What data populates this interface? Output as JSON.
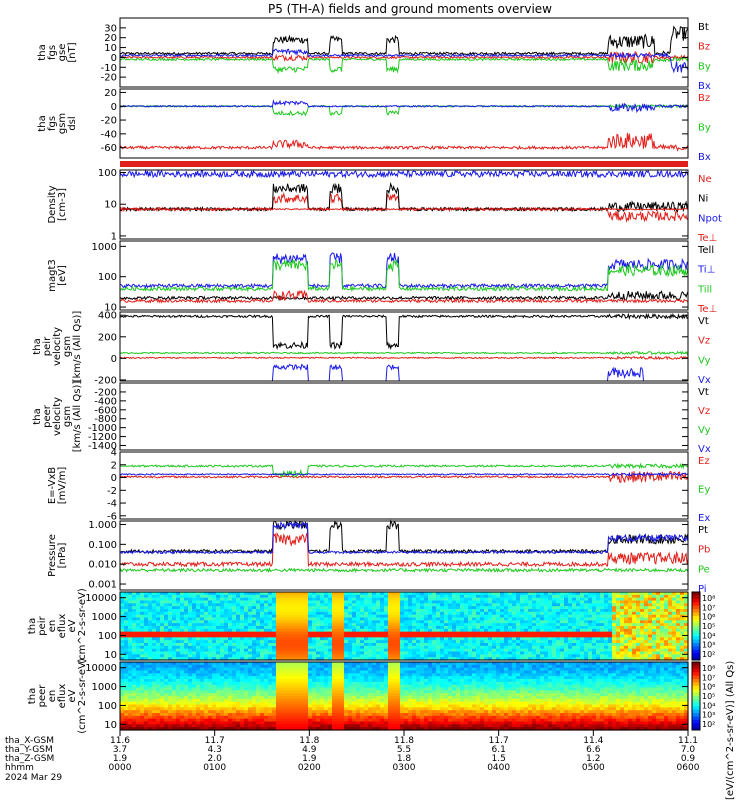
{
  "title": "P5 (TH-A) fields and ground moments overview",
  "colors": {
    "black": "#000000",
    "red": "#e0201b",
    "green": "#1ec81e",
    "blue": "#1a1ae6"
  },
  "chart_data": [
    {
      "type": "line",
      "ylabel": [
        "tha",
        "fgs",
        "gse",
        "[nT]"
      ],
      "ylim": [
        -30,
        40
      ],
      "yticks": [
        {
          "v": 30,
          "label": "30"
        },
        {
          "v": 20,
          "label": "20"
        },
        {
          "v": 10,
          "label": "10"
        },
        {
          "v": 0,
          "label": "0"
        },
        {
          "v": -10,
          "label": "-10"
        },
        {
          "v": -20,
          "label": "-20"
        }
      ],
      "series": [
        {
          "name": "Bt",
          "color": "black",
          "base": 4,
          "noise": 1.2,
          "burst": [
            {
              "t0": 0.27,
              "t1": 0.33,
              "add": 14
            },
            {
              "t0": 0.37,
              "t1": 0.39,
              "add": 14
            },
            {
              "t0": 0.47,
              "t1": 0.49,
              "add": 14
            },
            {
              "t0": 0.86,
              "t1": 0.94,
              "add": 12
            },
            {
              "t0": 0.97,
              "t1": 1.0,
              "add": 20
            }
          ]
        },
        {
          "name": "Bz",
          "color": "red",
          "base": 0,
          "noise": 1,
          "burst": [
            {
              "t0": 0.27,
              "t1": 0.33,
              "add": 0
            },
            {
              "t0": 0.86,
              "t1": 0.94,
              "add": 0
            }
          ]
        },
        {
          "name": "By",
          "color": "green",
          "base": -2,
          "noise": 1,
          "burst": [
            {
              "t0": 0.27,
              "t1": 0.33,
              "add": -10
            },
            {
              "t0": 0.37,
              "t1": 0.39,
              "add": -10
            },
            {
              "t0": 0.47,
              "t1": 0.49,
              "add": -10
            },
            {
              "t0": 0.86,
              "t1": 0.94,
              "add": -6
            }
          ]
        },
        {
          "name": "Bx",
          "color": "blue",
          "base": 2,
          "noise": 1,
          "burst": [
            {
              "t0": 0.27,
              "t1": 0.33,
              "add": 4
            },
            {
              "t0": 0.97,
              "t1": 1.0,
              "add": -12
            }
          ]
        }
      ]
    },
    {
      "type": "line",
      "ylabel": [
        "tha",
        "fgs",
        "gsm",
        "dsl"
      ],
      "ylim": [
        -75,
        25
      ],
      "yticks": [
        {
          "v": 20,
          "label": "20"
        },
        {
          "v": 0,
          "label": "0"
        },
        {
          "v": -20,
          "label": "-20"
        },
        {
          "v": -40,
          "label": "-40"
        },
        {
          "v": -60,
          "label": "-60"
        }
      ],
      "series": [
        {
          "name": "Bz",
          "color": "red",
          "base": -60,
          "noise": 2,
          "burst": [
            {
              "t0": 0.27,
              "t1": 0.33,
              "add": 5
            },
            {
              "t0": 0.86,
              "t1": 0.94,
              "add": 10
            }
          ]
        },
        {
          "name": "By",
          "color": "green",
          "base": 0,
          "noise": 1,
          "burst": [
            {
              "t0": 0.27,
              "t1": 0.33,
              "add": -10
            },
            {
              "t0": 0.37,
              "t1": 0.39,
              "add": -10
            },
            {
              "t0": 0.47,
              "t1": 0.49,
              "add": -10
            }
          ]
        },
        {
          "name": "Bx",
          "color": "blue",
          "base": 0,
          "noise": 1,
          "burst": [
            {
              "t0": 0.27,
              "t1": 0.33,
              "add": 5
            },
            {
              "t0": 0.86,
              "t1": 0.94,
              "add": -2
            }
          ]
        }
      ]
    },
    {
      "type": "line",
      "ylabel": [
        "Density",
        "[cm-3]"
      ],
      "log": true,
      "ylim": [
        0.8,
        120
      ],
      "yticks": [
        {
          "v": 100,
          "label": "100"
        },
        {
          "v": 10,
          "label": "10"
        },
        {
          "v": 1,
          "label": "1"
        }
      ],
      "series": [
        {
          "name": "Ne",
          "color": "red",
          "base": 7,
          "noise": 0.05,
          "burst": [
            {
              "t0": 0.27,
              "t1": 0.33,
              "mul": 2.2
            },
            {
              "t0": 0.37,
              "t1": 0.39,
              "mul": 2.2
            },
            {
              "t0": 0.47,
              "t1": 0.49,
              "mul": 2.2
            },
            {
              "t0": 0.86,
              "t1": 1.0,
              "mul": 0.6
            }
          ]
        },
        {
          "name": "Ni",
          "color": "black",
          "base": 7,
          "noise": 0.05,
          "burst": [
            {
              "t0": 0.27,
              "t1": 0.33,
              "mul": 4.5
            },
            {
              "t0": 0.37,
              "t1": 0.39,
              "mul": 4.5
            },
            {
              "t0": 0.47,
              "t1": 0.49,
              "mul": 4.5
            },
            {
              "t0": 0.86,
              "t1": 1.0,
              "mul": 1.2
            }
          ]
        },
        {
          "name": "Npot",
          "color": "blue",
          "base": 90,
          "noise": 0.1,
          "burst": []
        },
        {
          "name": "Te⊥",
          "color": "red",
          "base": 7,
          "noise": 0.02,
          "burst": []
        }
      ]
    },
    {
      "type": "line",
      "ylabel": [
        "magt3",
        "[eV]"
      ],
      "log": true,
      "ylim": [
        8,
        1500
      ],
      "yticks": [
        {
          "v": 1000,
          "label": "1000"
        },
        {
          "v": 100,
          "label": "100"
        },
        {
          "v": 10,
          "label": "10"
        }
      ],
      "series": [
        {
          "name": "Tell",
          "color": "black",
          "base": 20,
          "noise": 0.05,
          "burst": [
            {
              "t0": 0.86,
              "t1": 1.0,
              "mul": 1.2
            }
          ]
        },
        {
          "name": "Ti⊥",
          "color": "blue",
          "base": 50,
          "noise": 0.06,
          "burst": [
            {
              "t0": 0.27,
              "t1": 0.33,
              "mul": 8
            },
            {
              "t0": 0.37,
              "t1": 0.39,
              "mul": 8
            },
            {
              "t0": 0.47,
              "t1": 0.49,
              "mul": 8
            },
            {
              "t0": 0.86,
              "t1": 1.0,
              "mul": 5
            }
          ]
        },
        {
          "name": "Till",
          "color": "green",
          "base": 40,
          "noise": 0.06,
          "burst": [
            {
              "t0": 0.27,
              "t1": 0.33,
              "mul": 6
            },
            {
              "t0": 0.37,
              "t1": 0.39,
              "mul": 6
            },
            {
              "t0": 0.47,
              "t1": 0.49,
              "mul": 6
            },
            {
              "t0": 0.86,
              "t1": 1.0,
              "mul": 4
            }
          ]
        },
        {
          "name": "Te⊥",
          "color": "red",
          "base": 16,
          "noise": 0.05,
          "burst": [
            {
              "t0": 0.27,
              "t1": 0.33,
              "mul": 1.5
            }
          ]
        }
      ]
    },
    {
      "type": "line",
      "ylabel": [
        "tha",
        "peir",
        "velocity",
        "gsm",
        "[km/s (All Qs)]"
      ],
      "ylim": [
        -210,
        430
      ],
      "yticks": [
        {
          "v": 400,
          "label": "400"
        },
        {
          "v": 200,
          "label": "200"
        },
        {
          "v": 0,
          "label": "0"
        },
        {
          "v": -200,
          "label": "-200"
        }
      ],
      "series": [
        {
          "name": "Vt",
          "color": "black",
          "base": 390,
          "noise": 10,
          "burst": [
            {
              "t0": 0.27,
              "t1": 0.33,
              "add": -270
            },
            {
              "t0": 0.37,
              "t1": 0.39,
              "add": -270
            },
            {
              "t0": 0.47,
              "t1": 0.49,
              "add": -270
            }
          ]
        },
        {
          "name": "Vz",
          "color": "red",
          "base": 5,
          "noise": 6,
          "burst": []
        },
        {
          "name": "Vy",
          "color": "green",
          "base": 50,
          "noise": 6,
          "burst": []
        },
        {
          "name": "Vx",
          "color": "blue",
          "base": -380,
          "noise": 8,
          "burst": [
            {
              "t0": 0.27,
              "t1": 0.33,
              "add": 300
            },
            {
              "t0": 0.37,
              "t1": 0.39,
              "add": 300
            },
            {
              "t0": 0.47,
              "t1": 0.49,
              "add": 300
            },
            {
              "t0": 0.86,
              "t1": 0.92,
              "add": 250
            }
          ]
        }
      ]
    },
    {
      "type": "line",
      "ylabel": [
        "tha",
        "peer",
        "velocity",
        "gsm",
        "[km/s (All Qs)]"
      ],
      "ylim": [
        -1500,
        0
      ],
      "yticks": [
        {
          "v": -200,
          "label": "-200"
        },
        {
          "v": -400,
          "label": "-400"
        },
        {
          "v": -600,
          "label": "-600"
        },
        {
          "v": -800,
          "label": "-800"
        },
        {
          "v": -1000,
          "label": "-1000"
        },
        {
          "v": -1200,
          "label": "-1200"
        },
        {
          "v": -1400,
          "label": "-1400"
        }
      ],
      "series": [
        {
          "name": "Vt",
          "color": "black",
          "base": null
        },
        {
          "name": "Vz",
          "color": "red",
          "base": null
        },
        {
          "name": "Vy",
          "color": "green",
          "base": null
        },
        {
          "name": "Vx",
          "color": "blue",
          "base": null
        }
      ]
    },
    {
      "type": "line",
      "ylabel": [
        "E=-VxB",
        "[mV/m]"
      ],
      "ylim": [
        -6.5,
        4
      ],
      "yticks": [
        {
          "v": 4,
          "label": "4"
        },
        {
          "v": 2,
          "label": "2"
        },
        {
          "v": 0,
          "label": "0"
        },
        {
          "v": -2,
          "label": "-2"
        },
        {
          "v": -4,
          "label": "-4"
        },
        {
          "v": -6,
          "label": "-6"
        }
      ],
      "series": [
        {
          "name": "Ez",
          "color": "red",
          "base": 0.1,
          "noise": 0.15,
          "burst": [
            {
              "t0": 0.86,
              "t1": 1.0,
              "add": 0
            }
          ]
        },
        {
          "name": "Ey",
          "color": "green",
          "base": 1.8,
          "noise": 0.15,
          "burst": [
            {
              "t0": 0.27,
              "t1": 0.33,
              "add": -1.2
            }
          ]
        },
        {
          "name": "Ex",
          "color": "blue",
          "base": 0.5,
          "noise": 0.1,
          "burst": []
        }
      ]
    },
    {
      "type": "line",
      "ylabel": [
        "Pressure",
        "[nPa]"
      ],
      "log": true,
      "ylim": [
        0.0005,
        1.5
      ],
      "yticks": [
        {
          "v": 1,
          "label": "1.000"
        },
        {
          "v": 0.1,
          "label": "0.100"
        },
        {
          "v": 0.01,
          "label": "0.010"
        },
        {
          "v": 0.001,
          "label": "0.001"
        }
      ],
      "series": [
        {
          "name": "Pt",
          "color": "black",
          "base": 0.045,
          "noise": 0.08,
          "burst": [
            {
              "t0": 0.27,
              "t1": 0.33,
              "mul": 22
            },
            {
              "t0": 0.37,
              "t1": 0.39,
              "mul": 22
            },
            {
              "t0": 0.47,
              "t1": 0.49,
              "mul": 22
            },
            {
              "t0": 0.86,
              "t1": 1.0,
              "mul": 4
            }
          ]
        },
        {
          "name": "Pb",
          "color": "red",
          "base": 0.01,
          "noise": 0.1,
          "burst": [
            {
              "t0": 0.27,
              "t1": 0.33,
              "mul": 18
            },
            {
              "t0": 0.86,
              "t1": 1.0,
              "mul": 2
            }
          ]
        },
        {
          "name": "Pe",
          "color": "green",
          "base": 0.005,
          "noise": 0.08,
          "burst": []
        },
        {
          "name": "Pi",
          "color": "blue",
          "base": 0.04,
          "noise": 0.06,
          "burst": [
            {
              "t0": 0.27,
              "t1": 0.33,
              "mul": 22
            },
            {
              "t0": 0.86,
              "t1": 1.0,
              "mul": 5
            }
          ]
        }
      ]
    },
    {
      "type": "heatmap",
      "ylabel": [
        "tha",
        "peir",
        "en",
        "eflux",
        "eV",
        "(cm^2-s-sr-eV)"
      ],
      "log": true,
      "ylim": [
        5,
        20000
      ],
      "yticks": [
        {
          "v": 10000,
          "label": "10000"
        },
        {
          "v": 1000,
          "label": "1000"
        },
        {
          "v": 100,
          "label": "100"
        },
        {
          "v": 10,
          "label": "10"
        }
      ],
      "colorbar_ticks": [
        "10⁸",
        "10⁷",
        "10⁶",
        "10⁵",
        "10⁴",
        "10³",
        "10²"
      ]
    },
    {
      "type": "heatmap",
      "ylabel": [
        "tha",
        "peer",
        "en",
        "eflux",
        "eV",
        "(cm^2-s-sr-eV)"
      ],
      "log": true,
      "ylim": [
        5,
        20000
      ],
      "yticks": [
        {
          "v": 10000,
          "label": "10000"
        },
        {
          "v": 1000,
          "label": "1000"
        },
        {
          "v": 100,
          "label": "100"
        },
        {
          "v": 10,
          "label": "10"
        }
      ],
      "colorbar_ticks": [
        "10⁸",
        "10⁷",
        "10⁶",
        "10⁵",
        "10⁴",
        "10³",
        "10²"
      ]
    }
  ],
  "colorbar_label": "[eV/(cm^2-s-sr-eV)] (All Qs)",
  "xaxis": {
    "rows": [
      "tha_X-GSM",
      "tha_Y-GSM",
      "tha_Z-GSM",
      "hhmm",
      "2024 Mar 29"
    ],
    "columns": [
      {
        "x": "11.6",
        "y": "3.7",
        "z": "1.9",
        "hhmm": "0000"
      },
      {
        "x": "11.7",
        "y": "4.3",
        "z": "2.0",
        "hhmm": "0100"
      },
      {
        "x": "11.8",
        "y": "4.9",
        "z": "1.9",
        "hhmm": "0200"
      },
      {
        "x": "11.8",
        "y": "5.5",
        "z": "1.8",
        "hhmm": "0300"
      },
      {
        "x": "11.7",
        "y": "6.1",
        "z": "1.5",
        "hhmm": "0400"
      },
      {
        "x": "11.4",
        "y": "6.6",
        "z": "1.2",
        "hhmm": "0500"
      },
      {
        "x": "11.1",
        "y": "7.0",
        "z": "0.9",
        "hhmm": "0600"
      }
    ]
  }
}
